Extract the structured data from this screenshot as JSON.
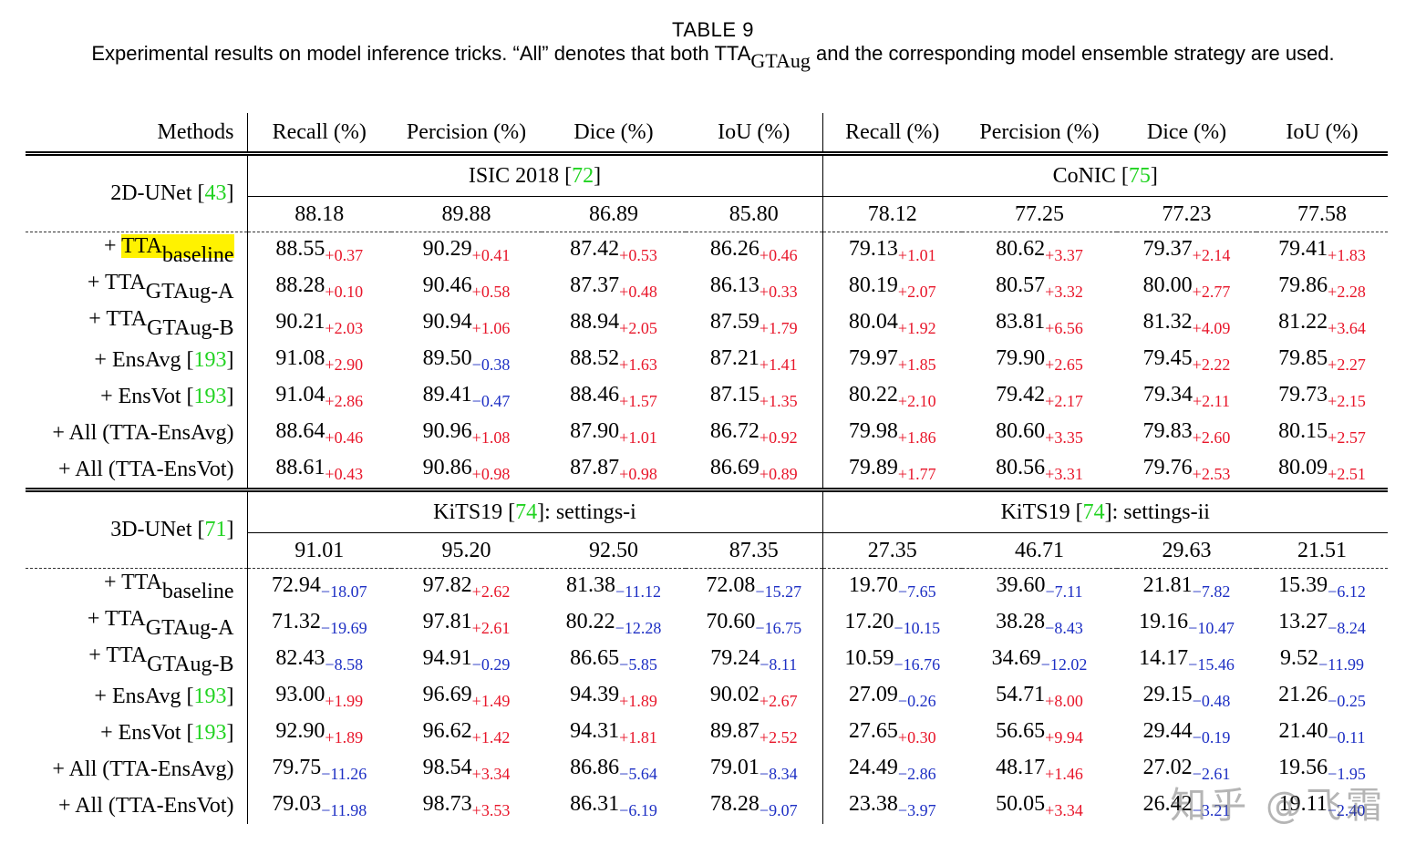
{
  "caption": {
    "title": "TABLE 9",
    "text_before": "Experimental results on model inference tricks. “All” denotes that both TTA",
    "text_sub": "GTAug",
    "text_after": " and the corresponding model ensemble strategy are used."
  },
  "header": {
    "methods": "Methods",
    "columns": [
      "Recall (%)",
      "Percision (%)",
      "Dice (%)",
      "IoU (%)",
      "Recall (%)",
      "Percision (%)",
      "Dice (%)",
      "IoU (%)"
    ]
  },
  "sections": [
    {
      "model_name": "2D-UNet [",
      "model_cite": "43",
      "model_end": "]",
      "dataset_left": {
        "name": "ISIC 2018 [",
        "cite": "72",
        "end": "]"
      },
      "dataset_right": {
        "name": "CoNIC [",
        "cite": "75",
        "end": "]"
      },
      "baseline": [
        "88.18",
        "89.88",
        "86.89",
        "85.80",
        "78.12",
        "77.25",
        "77.23",
        "77.58"
      ],
      "rows": [
        {
          "label": "+ TTA",
          "sub": "baseline",
          "highlight": true,
          "cite": "",
          "values": [
            "88.55",
            "90.29",
            "87.42",
            "86.26",
            "79.13",
            "80.62",
            "79.37",
            "79.41"
          ],
          "deltas": [
            "+0.37",
            "+0.41",
            "+0.53",
            "+0.46",
            "+1.01",
            "+3.37",
            "+2.14",
            "+1.83"
          ]
        },
        {
          "label": "+ TTA",
          "sub": "GTAug-A",
          "cite": "",
          "values": [
            "88.28",
            "90.46",
            "87.37",
            "86.13",
            "80.19",
            "80.57",
            "80.00",
            "79.86"
          ],
          "deltas": [
            "+0.10",
            "+0.58",
            "+0.48",
            "+0.33",
            "+2.07",
            "+3.32",
            "+2.77",
            "+2.28"
          ]
        },
        {
          "label": "+ TTA",
          "sub": "GTAug-B",
          "cite": "",
          "values": [
            "90.21",
            "90.94",
            "88.94",
            "87.59",
            "80.04",
            "83.81",
            "81.32",
            "81.22"
          ],
          "deltas": [
            "+2.03",
            "+1.06",
            "+2.05",
            "+1.79",
            "+1.92",
            "+6.56",
            "+4.09",
            "+3.64"
          ]
        },
        {
          "label": "+ EnsAvg [",
          "sub": "",
          "cite": "193",
          "values": [
            "91.08",
            "89.50",
            "88.52",
            "87.21",
            "79.97",
            "79.90",
            "79.45",
            "79.85"
          ],
          "deltas": [
            "+2.90",
            "−0.38",
            "+1.63",
            "+1.41",
            "+1.85",
            "+2.65",
            "+2.22",
            "+2.27"
          ]
        },
        {
          "label": "+ EnsVot [",
          "sub": "",
          "cite": "193",
          "values": [
            "91.04",
            "89.41",
            "88.46",
            "87.15",
            "80.22",
            "79.42",
            "79.34",
            "79.73"
          ],
          "deltas": [
            "+2.86",
            "−0.47",
            "+1.57",
            "+1.35",
            "+2.10",
            "+2.17",
            "+2.11",
            "+2.15"
          ]
        },
        {
          "label": "+ All (TTA-EnsAvg)",
          "sub": "",
          "cite": "",
          "values": [
            "88.64",
            "90.96",
            "87.90",
            "86.72",
            "79.98",
            "80.60",
            "79.83",
            "80.15"
          ],
          "deltas": [
            "+0.46",
            "+1.08",
            "+1.01",
            "+0.92",
            "+1.86",
            "+3.35",
            "+2.60",
            "+2.57"
          ]
        },
        {
          "label": "+ All (TTA-EnsVot)",
          "sub": "",
          "cite": "",
          "values": [
            "88.61",
            "90.86",
            "87.87",
            "86.69",
            "79.89",
            "80.56",
            "79.76",
            "80.09"
          ],
          "deltas": [
            "+0.43",
            "+0.98",
            "+0.98",
            "+0.89",
            "+1.77",
            "+3.31",
            "+2.53",
            "+2.51"
          ]
        }
      ]
    },
    {
      "model_name": "3D-UNet [",
      "model_cite": "71",
      "model_end": "]",
      "dataset_left": {
        "name": "KiTS19 [",
        "cite": "74",
        "end": "]: settings-i"
      },
      "dataset_right": {
        "name": "KiTS19 [",
        "cite": "74",
        "end": "]: settings-ii"
      },
      "baseline": [
        "91.01",
        "95.20",
        "92.50",
        "87.35",
        "27.35",
        "46.71",
        "29.63",
        "21.51"
      ],
      "rows": [
        {
          "label": "+ TTA",
          "sub": "baseline",
          "cite": "",
          "values": [
            "72.94",
            "97.82",
            "81.38",
            "72.08",
            "19.70",
            "39.60",
            "21.81",
            "15.39"
          ],
          "deltas": [
            "−18.07",
            "+2.62",
            "−11.12",
            "−15.27",
            "−7.65",
            "−7.11",
            "−7.82",
            "−6.12"
          ]
        },
        {
          "label": "+ TTA",
          "sub": "GTAug-A",
          "cite": "",
          "values": [
            "71.32",
            "97.81",
            "80.22",
            "70.60",
            "17.20",
            "38.28",
            "19.16",
            "13.27"
          ],
          "deltas": [
            "−19.69",
            "+2.61",
            "−12.28",
            "−16.75",
            "−10.15",
            "−8.43",
            "−10.47",
            "−8.24"
          ]
        },
        {
          "label": "+ TTA",
          "sub": "GTAug-B",
          "cite": "",
          "values": [
            "82.43",
            "94.91",
            "86.65",
            "79.24",
            "10.59",
            "34.69",
            "14.17",
            "9.52"
          ],
          "deltas": [
            "−8.58",
            "−0.29",
            "−5.85",
            "−8.11",
            "−16.76",
            "−12.02",
            "−15.46",
            "−11.99"
          ]
        },
        {
          "label": "+ EnsAvg [",
          "sub": "",
          "cite": "193",
          "values": [
            "93.00",
            "96.69",
            "94.39",
            "90.02",
            "27.09",
            "54.71",
            "29.15",
            "21.26"
          ],
          "deltas": [
            "+1.99",
            "+1.49",
            "+1.89",
            "+2.67",
            "−0.26",
            "+8.00",
            "−0.48",
            "−0.25"
          ]
        },
        {
          "label": "+ EnsVot [",
          "sub": "",
          "cite": "193",
          "values": [
            "92.90",
            "96.62",
            "94.31",
            "89.87",
            "27.65",
            "56.65",
            "29.44",
            "21.40"
          ],
          "deltas": [
            "+1.89",
            "+1.42",
            "+1.81",
            "+2.52",
            "+0.30",
            "+9.94",
            "−0.19",
            "−0.11"
          ]
        },
        {
          "label": "+ All (TTA-EnsAvg)",
          "sub": "",
          "cite": "",
          "values": [
            "79.75",
            "98.54",
            "86.86",
            "79.01",
            "24.49",
            "48.17",
            "27.02",
            "19.56"
          ],
          "deltas": [
            "−11.26",
            "+3.34",
            "−5.64",
            "−8.34",
            "−2.86",
            "+1.46",
            "−2.61",
            "−1.95"
          ]
        },
        {
          "label": "+ All (TTA-EnsVot)",
          "sub": "",
          "cite": "",
          "values": [
            "79.03",
            "98.73",
            "86.31",
            "78.28",
            "23.38",
            "50.05",
            "26.42",
            "19.11"
          ],
          "deltas": [
            "−11.98",
            "+3.53",
            "−6.19",
            "−9.07",
            "−3.97",
            "+3.34",
            "−3.21",
            "−2.40"
          ]
        }
      ]
    }
  ],
  "watermark": "知乎 @飞霜"
}
